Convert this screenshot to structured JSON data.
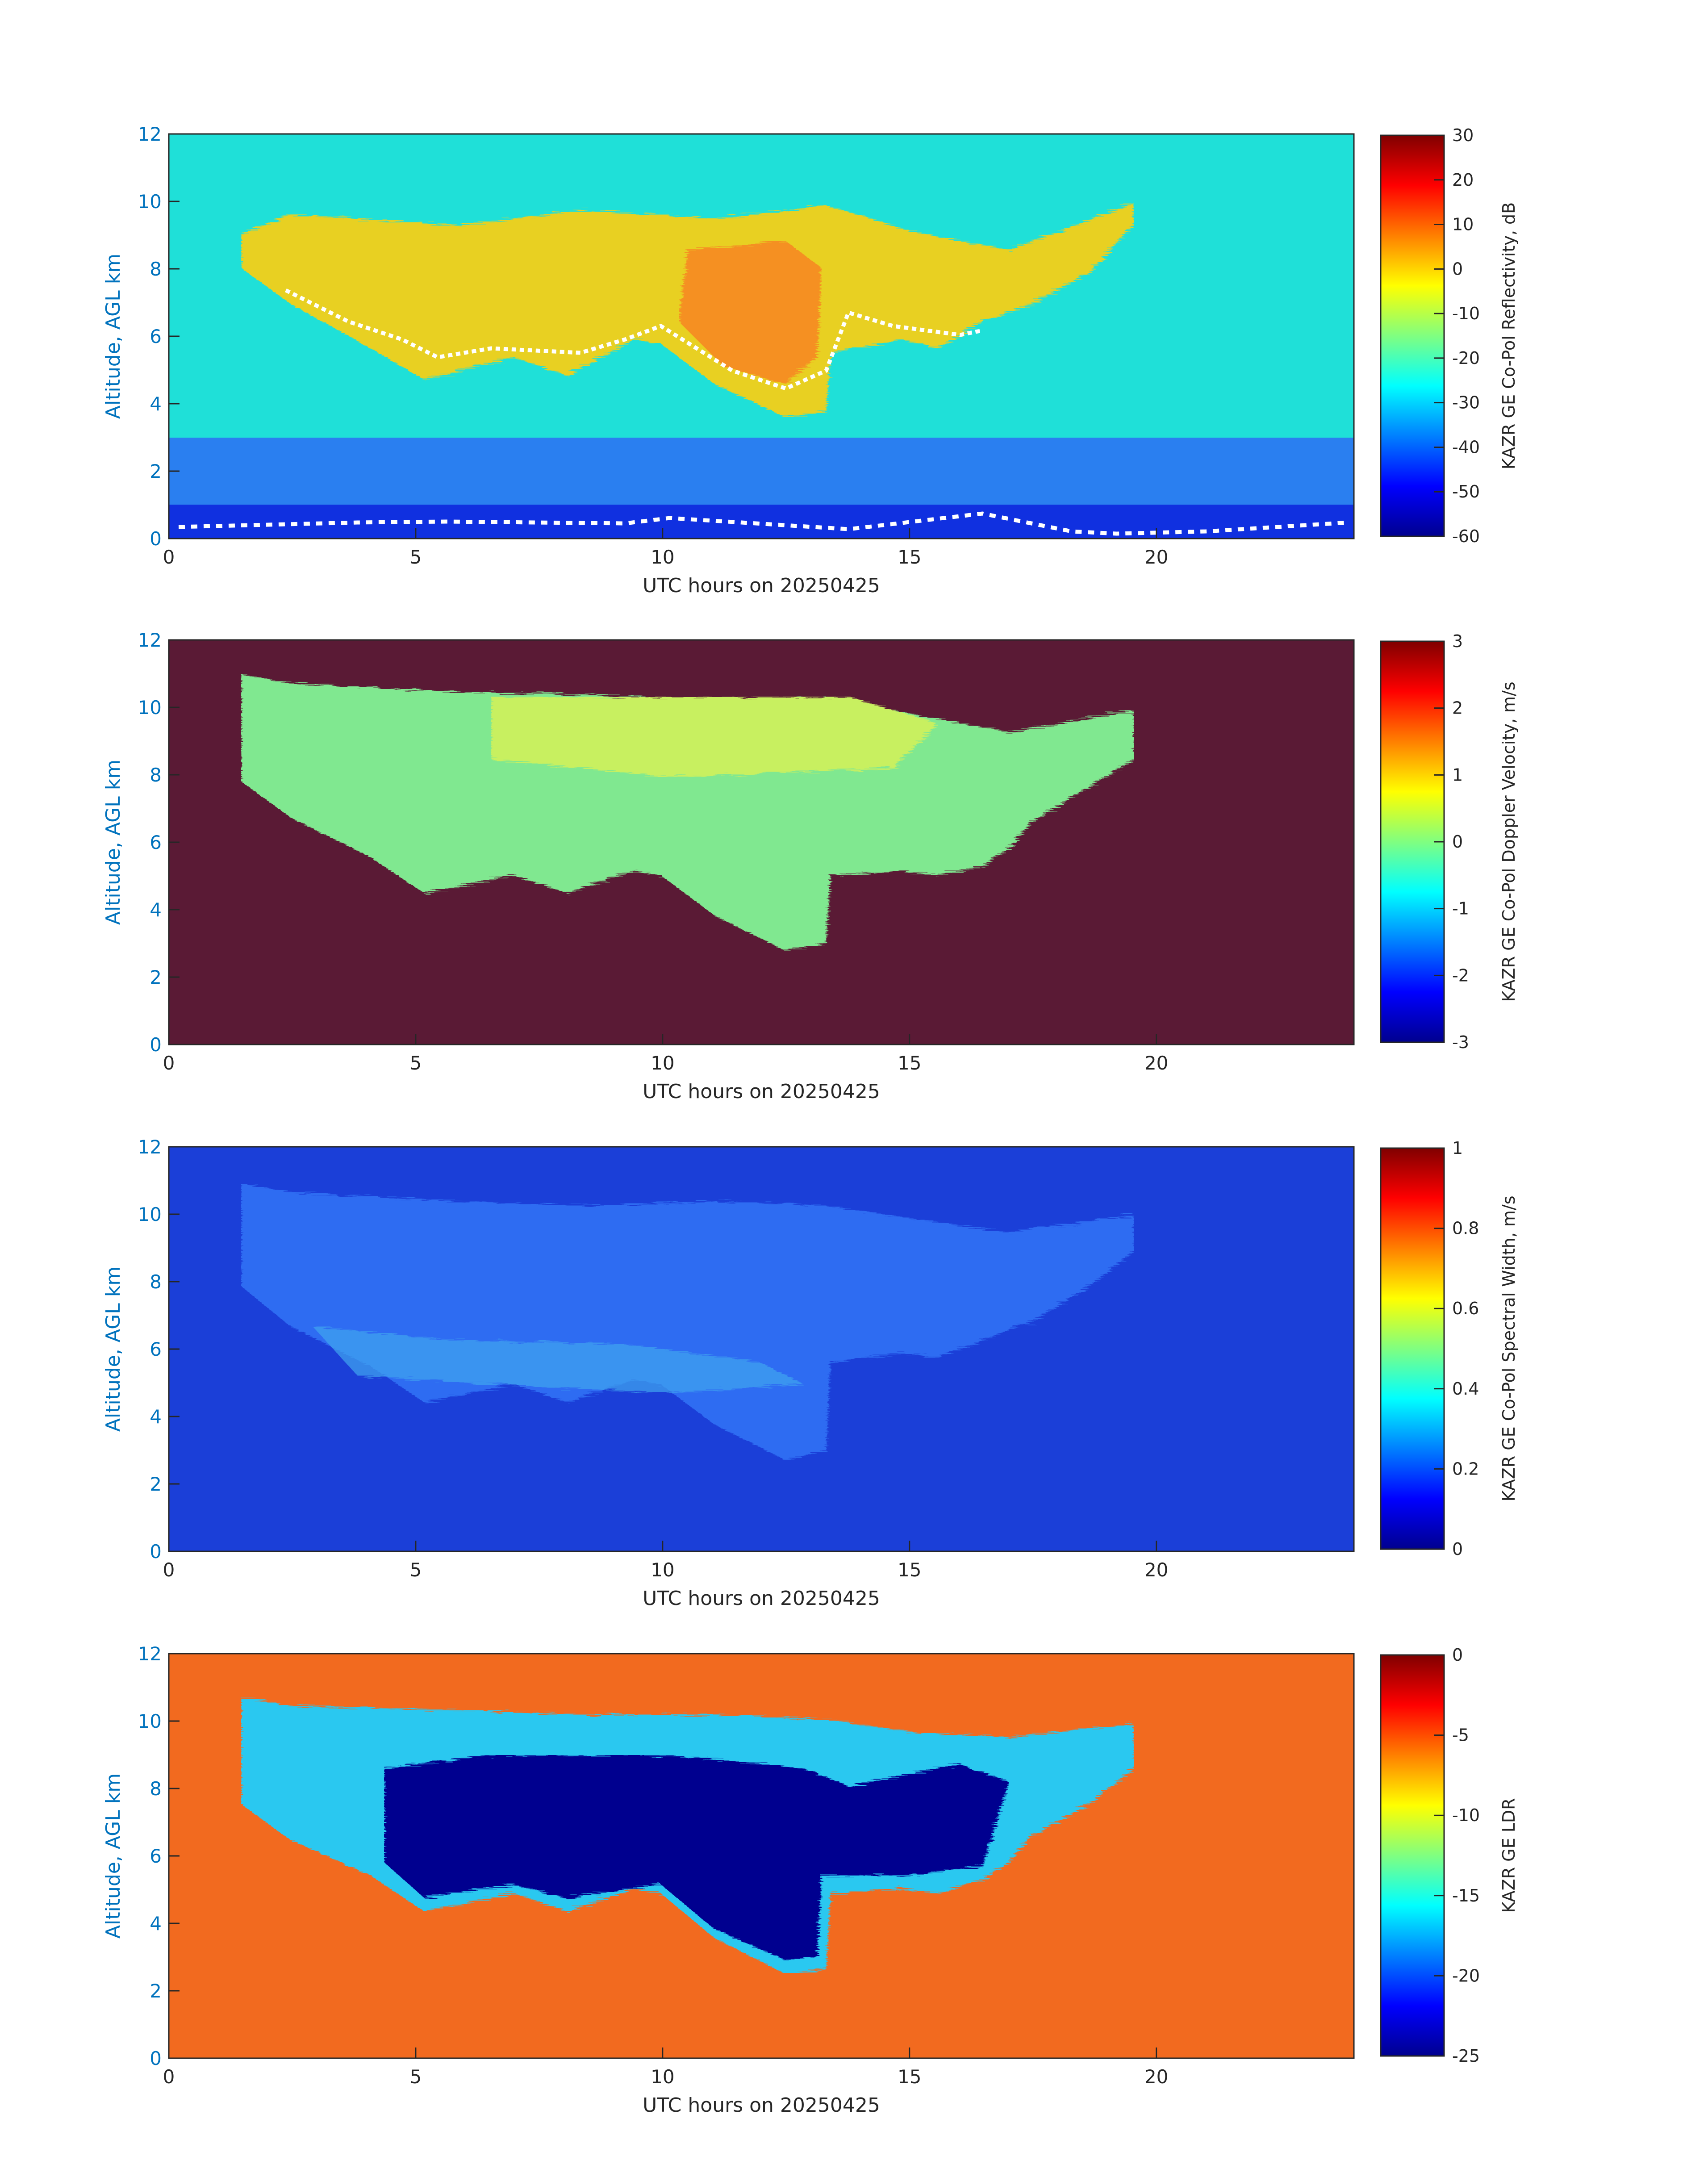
{
  "chart_data": [
    {
      "type": "heatmap",
      "field": "reflectivity",
      "xlabel": "UTC hours on 20250425",
      "ylabel": "Altitude, AGL km",
      "xlim": [
        0,
        24
      ],
      "ylim": [
        0,
        12
      ],
      "xticks": [
        "0",
        "5",
        "10",
        "15",
        "20"
      ],
      "yticks": [
        "0",
        "2",
        "4",
        "6",
        "8",
        "10",
        "12"
      ],
      "colorbar": {
        "label": "KAZR GE Co-Pol Reflectivity, dB",
        "min": -60,
        "max": 30,
        "ticks": [
          "30",
          "20",
          "10",
          "0",
          "-10",
          "-20",
          "-30",
          "-40",
          "-50",
          "-60"
        ]
      },
      "colormap": "jet",
      "cloud_top_km": [
        [
          1.5,
          9.5
        ],
        [
          3.5,
          9.5
        ],
        [
          6,
          9.2
        ],
        [
          10,
          9.3
        ],
        [
          13,
          9.2
        ],
        [
          15,
          8.8
        ],
        [
          17,
          8.6
        ],
        [
          19.5,
          8.8
        ]
      ],
      "cloud_base_km": [
        [
          1.5,
          7.6
        ],
        [
          3.5,
          6.6
        ],
        [
          5,
          4.5
        ],
        [
          8,
          4.9
        ],
        [
          10,
          5.5
        ],
        [
          12,
          3.7
        ],
        [
          13,
          3.0
        ],
        [
          13.4,
          4.0
        ],
        [
          15,
          5.0
        ],
        [
          17,
          6.3
        ],
        [
          19.5,
          7.9
        ]
      ],
      "note_values": "clear air about -30 dB, cloud core 0 to 5 dB"
    },
    {
      "type": "heatmap",
      "field": "doppler_velocity",
      "xlabel": "UTC hours on 20250425",
      "ylabel": "Altitude, AGL km",
      "xlim": [
        0,
        24
      ],
      "ylim": [
        0,
        12
      ],
      "xticks": [
        "0",
        "5",
        "10",
        "15",
        "20"
      ],
      "yticks": [
        "0",
        "2",
        "4",
        "6",
        "8",
        "10",
        "12"
      ],
      "colorbar": {
        "label": "KAZR GE Co-Pol Doppler Velocity, m/s",
        "min": -3,
        "max": 3,
        "ticks": [
          "3",
          "2",
          "1",
          "0",
          "-1",
          "-2",
          "-3"
        ]
      },
      "colormap": "jet"
    },
    {
      "type": "heatmap",
      "field": "spectral_width",
      "xlabel": "UTC hours on 20250425",
      "ylabel": "Altitude, AGL km",
      "xlim": [
        0,
        24
      ],
      "ylim": [
        0,
        12
      ],
      "xticks": [
        "0",
        "5",
        "10",
        "15",
        "20"
      ],
      "yticks": [
        "0",
        "2",
        "4",
        "6",
        "8",
        "10",
        "12"
      ],
      "colorbar": {
        "label": "KAZR GE Co-Pol Spectral Width, m/s",
        "min": 0,
        "max": 1,
        "ticks": [
          "1",
          "0.8",
          "0.6",
          "0.4",
          "0.2",
          "0"
        ]
      },
      "colormap": "jet"
    },
    {
      "type": "heatmap",
      "field": "ldr",
      "xlabel": "UTC hours on 20250425",
      "ylabel": "Altitude, AGL km",
      "xlim": [
        0,
        24
      ],
      "ylim": [
        0,
        12
      ],
      "xticks": [
        "0",
        "5",
        "10",
        "15",
        "20"
      ],
      "yticks": [
        "0",
        "2",
        "4",
        "6",
        "8",
        "10",
        "12"
      ],
      "colorbar": {
        "label": "KAZR GE LDR",
        "min": -25,
        "max": 0,
        "ticks": [
          "0",
          "-5",
          "-10",
          "-15",
          "-20",
          "-25"
        ]
      },
      "colormap": "jet"
    }
  ]
}
